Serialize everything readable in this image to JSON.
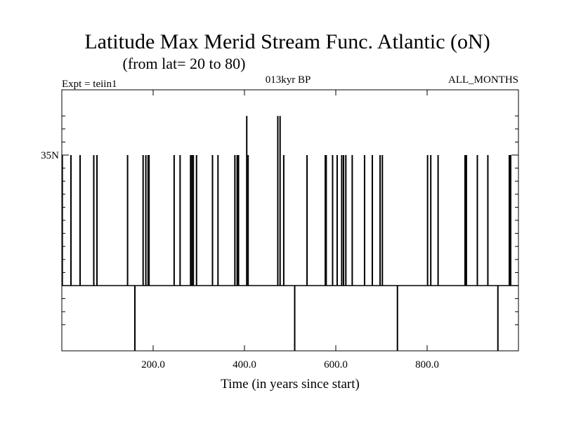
{
  "chart_data": {
    "type": "line",
    "title": "Latitude Max Merid Stream Func. Atlantic (oN)",
    "subtitle": "(from lat= 20 to 80)",
    "annotations": {
      "left": "Expt = teiin1",
      "center": "013kyr BP",
      "right": "ALL_MONTHS"
    },
    "xlabel": "Time (in years since start)",
    "ylabel": "",
    "xlim": [
      0,
      1000
    ],
    "ylim": [
      20,
      40
    ],
    "baseline": 25,
    "x_ticks": [
      200,
      400,
      600,
      800
    ],
    "x_tick_labels": [
      "200.0",
      "400.0",
      "600.0",
      "800.0"
    ],
    "y_labeled_tick": 35,
    "y_labeled_tick_label": "35N",
    "y_minor_ticks": [
      22,
      23,
      24,
      26,
      27,
      28,
      29,
      30,
      31,
      32,
      33,
      34,
      36,
      37,
      38
    ],
    "grid": false,
    "spikes": [
      {
        "x": 1,
        "y": 35
      },
      {
        "x": 20,
        "y": 35
      },
      {
        "x": 40,
        "y": 35
      },
      {
        "x": 70,
        "y": 35
      },
      {
        "x": 77,
        "y": 35
      },
      {
        "x": 144,
        "y": 35
      },
      {
        "x": 160,
        "y": 20
      },
      {
        "x": 178,
        "y": 35
      },
      {
        "x": 184,
        "y": 35
      },
      {
        "x": 189,
        "y": 35
      },
      {
        "x": 191,
        "y": 35
      },
      {
        "x": 246,
        "y": 35
      },
      {
        "x": 259,
        "y": 35
      },
      {
        "x": 282,
        "y": 35
      },
      {
        "x": 285,
        "y": 35
      },
      {
        "x": 288,
        "y": 35
      },
      {
        "x": 295,
        "y": 35
      },
      {
        "x": 330,
        "y": 35
      },
      {
        "x": 342,
        "y": 35
      },
      {
        "x": 379,
        "y": 35
      },
      {
        "x": 384,
        "y": 35
      },
      {
        "x": 387,
        "y": 35
      },
      {
        "x": 405,
        "y": 38
      },
      {
        "x": 408,
        "y": 35
      },
      {
        "x": 473,
        "y": 38
      },
      {
        "x": 478,
        "y": 38
      },
      {
        "x": 486,
        "y": 35
      },
      {
        "x": 510,
        "y": 20
      },
      {
        "x": 537,
        "y": 35
      },
      {
        "x": 577,
        "y": 35
      },
      {
        "x": 579,
        "y": 35
      },
      {
        "x": 593,
        "y": 35
      },
      {
        "x": 603,
        "y": 35
      },
      {
        "x": 613,
        "y": 35
      },
      {
        "x": 617,
        "y": 35
      },
      {
        "x": 622,
        "y": 35
      },
      {
        "x": 636,
        "y": 35
      },
      {
        "x": 663,
        "y": 35
      },
      {
        "x": 680,
        "y": 35
      },
      {
        "x": 697,
        "y": 35
      },
      {
        "x": 702,
        "y": 35
      },
      {
        "x": 735,
        "y": 20
      },
      {
        "x": 801,
        "y": 35
      },
      {
        "x": 808,
        "y": 35
      },
      {
        "x": 824,
        "y": 35
      },
      {
        "x": 883,
        "y": 35
      },
      {
        "x": 886,
        "y": 35
      },
      {
        "x": 910,
        "y": 35
      },
      {
        "x": 933,
        "y": 35
      },
      {
        "x": 955,
        "y": 20
      },
      {
        "x": 980,
        "y": 35
      },
      {
        "x": 983,
        "y": 35
      }
    ]
  }
}
